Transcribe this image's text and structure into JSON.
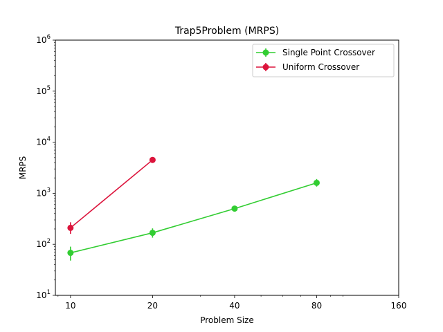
{
  "chart_data": {
    "type": "line",
    "title": "Trap5Problem (MRPS)",
    "xlabel": "Problem Size",
    "ylabel": "MRPS",
    "xscale": "log",
    "yscale": "log",
    "xlim": [
      8.8,
      160
    ],
    "ylim": [
      10,
      1000000
    ],
    "x_ticks": [
      10,
      20,
      40,
      80,
      160
    ],
    "x_tick_labels": [
      "10",
      "20",
      "40",
      "80",
      "160"
    ],
    "y_ticks": [
      10,
      100,
      1000,
      10000,
      100000,
      1000000
    ],
    "y_tick_labels": [
      {
        "base": "10",
        "exp": "1"
      },
      {
        "base": "10",
        "exp": "2"
      },
      {
        "base": "10",
        "exp": "3"
      },
      {
        "base": "10",
        "exp": "4"
      },
      {
        "base": "10",
        "exp": "5"
      },
      {
        "base": "10",
        "exp": "6"
      }
    ],
    "grid": false,
    "legend_position": "top-right",
    "series": [
      {
        "name": "Single Point Crossover",
        "color": "#32cd32",
        "x": [
          10,
          20,
          40,
          80
        ],
        "y": [
          68,
          168,
          500,
          1600
        ],
        "err_low": [
          48,
          135,
          440,
          1350
        ],
        "err_high": [
          90,
          205,
          570,
          1900
        ]
      },
      {
        "name": "Uniform Crossover",
        "color": "#dc143c",
        "x": [
          10,
          20
        ],
        "y": [
          210,
          4500
        ],
        "err_low": [
          160,
          4000
        ],
        "err_high": [
          270,
          5000
        ]
      }
    ]
  }
}
